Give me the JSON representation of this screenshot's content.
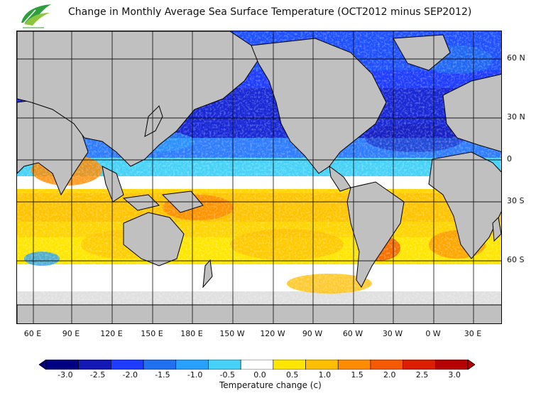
{
  "title": "Change in Monthly Average Sea Surface Temperature (OCT2012 minus SEP2012)",
  "logo": {
    "icon": "leaf-logo-icon",
    "colors": [
      "#2e9e3e",
      "#8cc63f"
    ]
  },
  "lon_labels": [
    "60 E",
    "90 E",
    "120 E",
    "150 E",
    "180 E",
    "150 W",
    "120 W",
    "90 W",
    "60 W",
    "30 W",
    "0 W",
    "30 E"
  ],
  "lat_labels": [
    "60 N",
    "30 N",
    "0",
    "30 S",
    "60 S"
  ],
  "colorbar": {
    "title": "Temperature change  (c)",
    "ticks": [
      "-3.0",
      "-2.5",
      "-2.0",
      "-1.5",
      "-1.0",
      "-0.5",
      "0.0",
      "0.5",
      "1.0",
      "1.5",
      "2.0",
      "2.5",
      "3.0"
    ],
    "colors": [
      "#000080",
      "#1418b4",
      "#1e3cff",
      "#2070f0",
      "#28a0ff",
      "#46d2f8",
      "#ffffff",
      "#ffe600",
      "#ffbe00",
      "#ff8c00",
      "#f55a00",
      "#dc1e00",
      "#b40000"
    ]
  },
  "land_color": "#c0c0c0",
  "ice_color": "#e0e0e0"
}
